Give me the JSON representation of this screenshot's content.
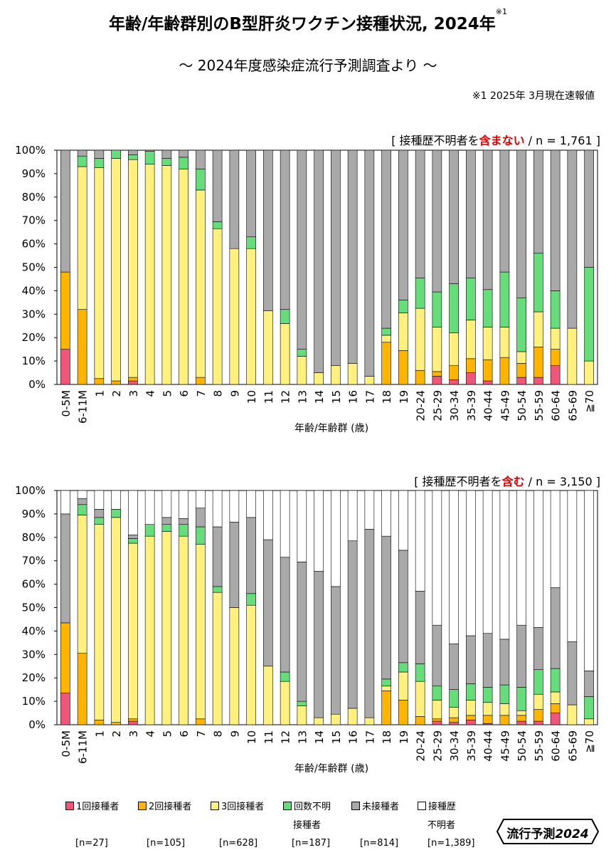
{
  "title": "年齢/年齢群別のB型肝炎ワクチン接種状況, 2024年",
  "title_note_mark": "※1",
  "subtitle": "～ 2024年度感染症流行予測調査より ～",
  "note": "※1  2025年 3月現在速報値",
  "xlabel": "年齢/年齢群 (歳)",
  "legend": {
    "items": [
      {
        "label": "1回接種者",
        "sub": "",
        "n": "[n=27]"
      },
      {
        "label": "2回接種者",
        "sub": "",
        "n": "[n=105]"
      },
      {
        "label": "3回接種者",
        "sub": "",
        "n": "[n=628]"
      },
      {
        "label": "回数不明",
        "sub": "接種者",
        "n": "[n=187]"
      },
      {
        "label": "未接種者",
        "sub": "",
        "n": "[n=814]"
      },
      {
        "label": "接種歴",
        "sub": "不明者",
        "n": "[n=1,389]"
      }
    ]
  },
  "badge": {
    "text": "流行予測",
    "year": "2024"
  },
  "chart_data": [
    {
      "type": "bar",
      "stacked": true,
      "label_prefix": "[ 接種歴不明者を",
      "label_highlight": "含まない",
      "label_suffix": " / n = 1,761 ]",
      "ylabel": "",
      "ylim": [
        0,
        100
      ],
      "yticks": [
        "0%",
        "10%",
        "20%",
        "30%",
        "40%",
        "50%",
        "60%",
        "70%",
        "80%",
        "90%",
        "100%"
      ],
      "categories": [
        "0-5M",
        "6-11M",
        "1",
        "2",
        "3",
        "4",
        "5",
        "6",
        "7",
        "8",
        "9",
        "10",
        "11",
        "12",
        "13",
        "14",
        "15",
        "16",
        "17",
        "18",
        "19",
        "20-24",
        "25-29",
        "30-34",
        "35-39",
        "40-44",
        "45-49",
        "50-54",
        "55-59",
        "60-64",
        "65-69",
        "≧70"
      ],
      "series": [
        {
          "name": "1回接種者",
          "color": "#f0567a",
          "values": [
            15,
            0,
            0,
            0,
            1.5,
            0,
            0,
            0,
            0,
            0,
            0,
            0,
            0,
            0,
            0,
            0,
            0,
            0,
            0,
            0,
            0,
            0,
            3.5,
            2,
            5,
            1.5,
            0,
            3,
            3,
            8,
            0,
            0
          ]
        },
        {
          "name": "2回接種者",
          "color": "#ffb400",
          "values": [
            33,
            32,
            2.5,
            1.5,
            1.5,
            0,
            0,
            0,
            3,
            0,
            0,
            0,
            0,
            0,
            0,
            0,
            0,
            0,
            0,
            18,
            14.5,
            6,
            2,
            6,
            6,
            9,
            11.5,
            6,
            13,
            7,
            0,
            0
          ]
        },
        {
          "name": "3回接種者",
          "color": "#fff080",
          "values": [
            0,
            61,
            90,
            95,
            93,
            94,
            93.5,
            92,
            80,
            66.5,
            58,
            58,
            31.5,
            26,
            12,
            5,
            8,
            9,
            3.5,
            3,
            16,
            26.5,
            19,
            14,
            16.5,
            14,
            13,
            5,
            15,
            9,
            24,
            10
          ]
        },
        {
          "name": "回数不明",
          "color": "#66dd7a",
          "values": [
            0,
            4.5,
            4,
            3.5,
            2,
            5.5,
            3,
            5,
            9,
            3,
            0,
            5,
            0,
            6,
            3,
            0,
            0,
            0,
            0,
            3,
            5.5,
            13,
            15,
            21,
            18,
            16,
            23.5,
            23,
            25,
            16,
            0,
            40
          ]
        },
        {
          "name": "未接種者",
          "color": "#a9a9a9",
          "values": [
            52,
            2.5,
            3.5,
            0,
            2,
            0.5,
            3.5,
            3,
            8,
            30.5,
            42,
            37,
            68.5,
            68,
            85,
            95,
            92,
            91,
            96.5,
            76,
            64,
            54.5,
            60.5,
            57,
            54.5,
            59.5,
            52,
            63,
            44,
            60,
            76,
            50
          ]
        }
      ]
    },
    {
      "type": "bar",
      "stacked": true,
      "label_prefix": "[ 接種歴不明者を",
      "label_highlight": "含む",
      "label_suffix": " / n = 3,150 ]",
      "ylabel": "",
      "ylim": [
        0,
        100
      ],
      "yticks": [
        "0%",
        "10%",
        "20%",
        "30%",
        "40%",
        "50%",
        "60%",
        "70%",
        "80%",
        "90%",
        "100%"
      ],
      "categories": [
        "0-5M",
        "6-11M",
        "1",
        "2",
        "3",
        "4",
        "5",
        "6",
        "7",
        "8",
        "9",
        "10",
        "11",
        "12",
        "13",
        "14",
        "15",
        "16",
        "17",
        "18",
        "19",
        "20-24",
        "25-29",
        "30-34",
        "35-39",
        "40-44",
        "45-49",
        "50-54",
        "55-59",
        "60-64",
        "65-69",
        "≧70"
      ],
      "series": [
        {
          "name": "1回接種者",
          "color": "#f0567a",
          "values": [
            13.5,
            0,
            0,
            0,
            1.5,
            0,
            0,
            0,
            0,
            0,
            0,
            0,
            0,
            0,
            0,
            0,
            0,
            0,
            0,
            0,
            0,
            0,
            1.5,
            1,
            2,
            0.5,
            0,
            1.5,
            1.5,
            5,
            0,
            0
          ]
        },
        {
          "name": "2回接種者",
          "color": "#ffb400",
          "values": [
            30,
            30.5,
            2,
            1,
            1,
            0,
            0,
            0,
            2.5,
            0,
            0,
            0,
            0,
            0,
            0,
            0,
            0,
            0,
            0,
            14.5,
            10.5,
            3.5,
            1,
            2,
            2,
            3.5,
            4,
            2.5,
            5,
            4,
            0,
            0
          ]
        },
        {
          "name": "3回接種者",
          "color": "#fff080",
          "values": [
            0,
            59,
            83.5,
            87.5,
            75,
            80.5,
            82.5,
            80.5,
            74.5,
            56.5,
            50,
            51,
            25,
            18.5,
            8,
            3,
            4.5,
            7,
            3,
            2,
            12,
            15,
            8,
            4.5,
            6.5,
            5.5,
            5,
            2,
            6.5,
            5,
            8.5,
            2.5
          ]
        },
        {
          "name": "回数不明",
          "color": "#66dd7a",
          "values": [
            0,
            4.5,
            3,
            3.5,
            2,
            5,
            3,
            5,
            7.5,
            2.5,
            0,
            5,
            0,
            4,
            2,
            0,
            0,
            0,
            0,
            3,
            4,
            7.5,
            6,
            7.5,
            7,
            6.5,
            8,
            10,
            10.5,
            10,
            0,
            9.5
          ]
        },
        {
          "name": "未接種者",
          "color": "#a9a9a9",
          "values": [
            46.5,
            2.5,
            3.5,
            0,
            1.5,
            0,
            3,
            2.5,
            8,
            25.5,
            36.5,
            32.5,
            54,
            49,
            59.5,
            62.5,
            54.5,
            71.5,
            80.5,
            61,
            48,
            31,
            26,
            19.5,
            20.5,
            23,
            19.5,
            26.5,
            18,
            34.5,
            27,
            11
          ]
        },
        {
          "name": "接種歴不明者",
          "color": "#ffffff",
          "values": [
            10,
            3.5,
            8,
            8,
            19,
            14.5,
            11.5,
            12,
            7.5,
            15.5,
            13.5,
            11.5,
            21,
            28.5,
            30.5,
            34.5,
            41,
            21.5,
            16.5,
            19.5,
            25.5,
            43,
            57.5,
            65.5,
            62,
            61,
            63.5,
            57.5,
            58.5,
            41.5,
            64.5,
            77
          ]
        }
      ]
    }
  ]
}
